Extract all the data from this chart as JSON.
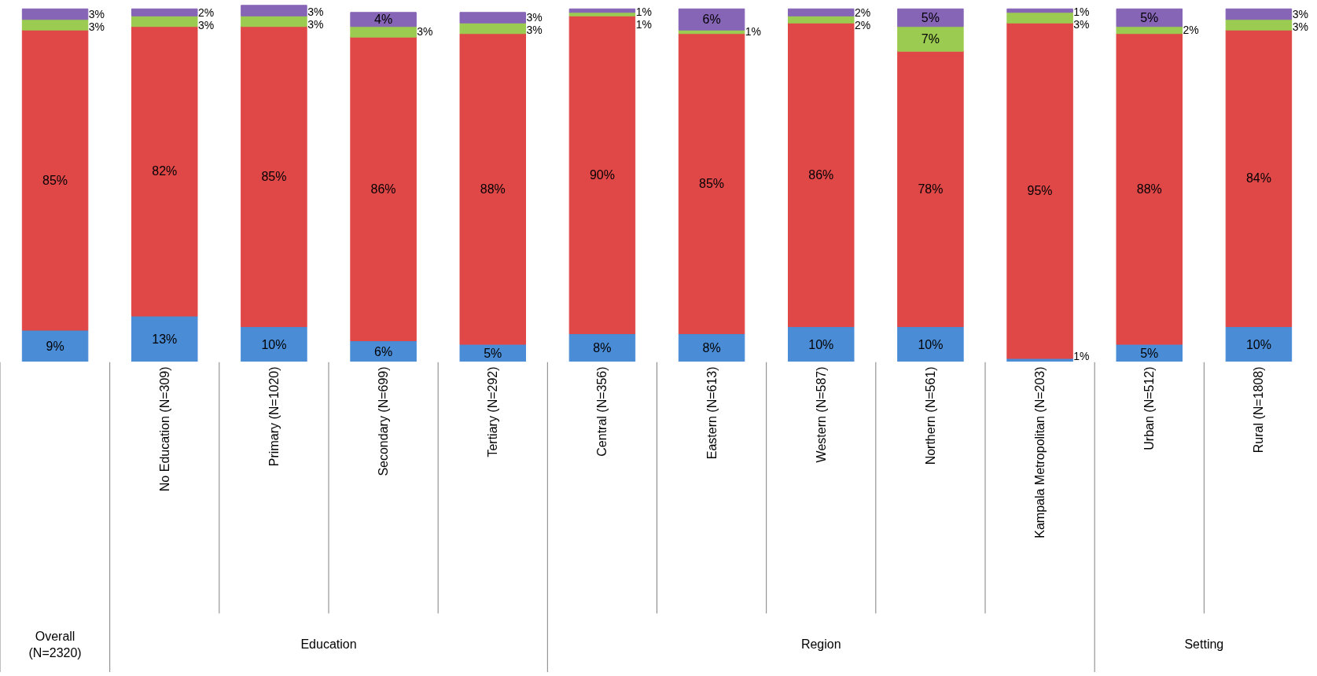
{
  "chart_data": {
    "type": "bar",
    "stacked": true,
    "grid": false,
    "categories": [
      null,
      "No Education (N=309)",
      "Primary (N=1020)",
      "Secondary (N=699)",
      "Tertiary (N=292)",
      "Central (N=356)",
      "Eastern (N=613)",
      "Western (N=587)",
      "Northern (N=561)",
      "Kampala Metropolitan (N=203)",
      "Urban (N=512)",
      "Rural (N=1808)"
    ],
    "series": [
      {
        "color": "#4a8cd6",
        "values": [
          9,
          13,
          10,
          6,
          5,
          8,
          8,
          10,
          10,
          1,
          5,
          10
        ],
        "value_labels": [
          "9%",
          "13%",
          "10%",
          "6%",
          "5%",
          "8%",
          "8%",
          "10%",
          "10%",
          "1%",
          "5%",
          "10%"
        ]
      },
      {
        "color": "#e04848",
        "values": [
          85,
          82,
          85,
          86,
          88,
          90,
          85,
          86,
          78,
          95,
          88,
          84
        ],
        "value_labels": [
          "85%",
          "82%",
          "85%",
          "86%",
          "88%",
          "90%",
          "85%",
          "86%",
          "78%",
          "95%",
          "88%",
          "84%"
        ]
      },
      {
        "color": "#9bcb50",
        "values": [
          3,
          3,
          3,
          3,
          3,
          1,
          1,
          2,
          7,
          3,
          2,
          3
        ],
        "value_labels": [
          "3%",
          "3%",
          "3%",
          "3%",
          "3%",
          "1%",
          "1%",
          "2%",
          "7%",
          "3%",
          "2%",
          "3%"
        ]
      },
      {
        "color": "#8664b6",
        "values": [
          3,
          2,
          3,
          4,
          3,
          1,
          6,
          2,
          5,
          1,
          5,
          3
        ],
        "value_labels": [
          "3%",
          "2%",
          "3%",
          "4%",
          "3%",
          "1%",
          "6%",
          "2%",
          "5%",
          "1%",
          "5%",
          "3%"
        ]
      }
    ],
    "annotations": [
      "Overall (N=2320)",
      "Education",
      "Region",
      "Setting"
    ]
  }
}
